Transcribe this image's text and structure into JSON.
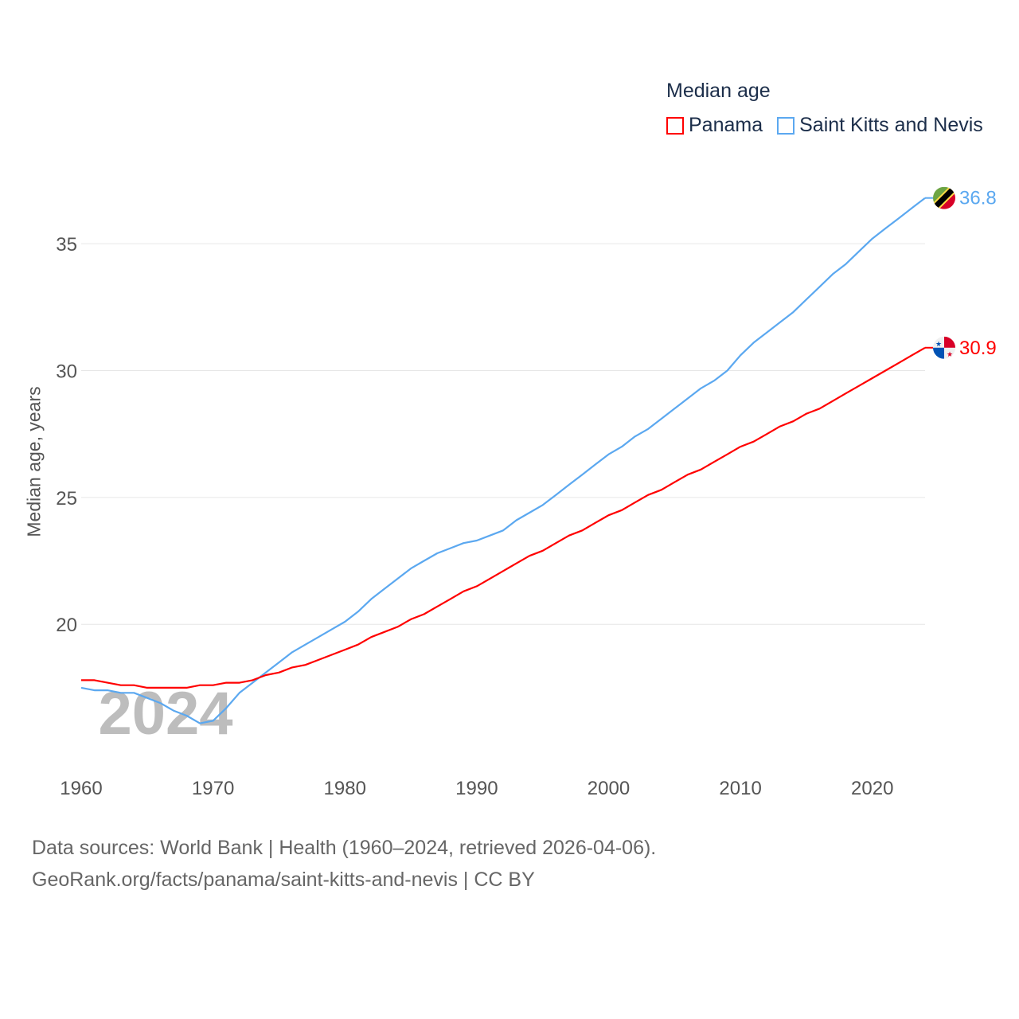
{
  "chart_data": {
    "type": "line",
    "title": "Median age",
    "xlabel": "",
    "ylabel": "Median age, years",
    "xlim": [
      1960,
      2024
    ],
    "ylim": [
      14.8,
      37.7
    ],
    "grid": true,
    "legend_position": "top-right",
    "x_ticks": [
      "1960",
      "1970",
      "1980",
      "1990",
      "2000",
      "2010",
      "2020"
    ],
    "y_ticks": [
      "20",
      "25",
      "30",
      "35"
    ],
    "watermark_year": "2024",
    "x": [
      1960,
      1961,
      1962,
      1963,
      1964,
      1965,
      1966,
      1967,
      1968,
      1969,
      1970,
      1971,
      1972,
      1973,
      1974,
      1975,
      1976,
      1977,
      1978,
      1979,
      1980,
      1981,
      1982,
      1983,
      1984,
      1985,
      1986,
      1987,
      1988,
      1989,
      1990,
      1991,
      1992,
      1993,
      1994,
      1995,
      1996,
      1997,
      1998,
      1999,
      2000,
      2001,
      2002,
      2003,
      2004,
      2005,
      2006,
      2007,
      2008,
      2009,
      2010,
      2011,
      2012,
      2013,
      2014,
      2015,
      2016,
      2017,
      2018,
      2019,
      2020,
      2021,
      2022,
      2023,
      2024
    ],
    "series": [
      {
        "name": "Panama",
        "color": "#ff0000",
        "end_label": "30.9",
        "values": [
          17.8,
          17.8,
          17.7,
          17.6,
          17.6,
          17.5,
          17.5,
          17.5,
          17.5,
          17.6,
          17.6,
          17.7,
          17.7,
          17.8,
          18.0,
          18.1,
          18.3,
          18.4,
          18.6,
          18.8,
          19.0,
          19.2,
          19.5,
          19.7,
          19.9,
          20.2,
          20.4,
          20.7,
          21.0,
          21.3,
          21.5,
          21.8,
          22.1,
          22.4,
          22.7,
          22.9,
          23.2,
          23.5,
          23.7,
          24.0,
          24.3,
          24.5,
          24.8,
          25.1,
          25.3,
          25.6,
          25.9,
          26.1,
          26.4,
          26.7,
          27.0,
          27.2,
          27.5,
          27.8,
          28.0,
          28.3,
          28.5,
          28.8,
          29.1,
          29.4,
          29.7,
          30.0,
          30.3,
          30.6,
          30.9
        ]
      },
      {
        "name": "Saint Kitts and Nevis",
        "color": "#5ba8f0",
        "end_label": "36.8",
        "values": [
          17.5,
          17.4,
          17.4,
          17.3,
          17.3,
          17.1,
          16.9,
          16.6,
          16.4,
          16.1,
          16.2,
          16.7,
          17.3,
          17.7,
          18.1,
          18.5,
          18.9,
          19.2,
          19.5,
          19.8,
          20.1,
          20.5,
          21.0,
          21.4,
          21.8,
          22.2,
          22.5,
          22.8,
          23.0,
          23.2,
          23.3,
          23.5,
          23.7,
          24.1,
          24.4,
          24.7,
          25.1,
          25.5,
          25.9,
          26.3,
          26.7,
          27.0,
          27.4,
          27.7,
          28.1,
          28.5,
          28.9,
          29.3,
          29.6,
          30.0,
          30.6,
          31.1,
          31.5,
          31.9,
          32.3,
          32.8,
          33.3,
          33.8,
          34.2,
          34.7,
          35.2,
          35.6,
          36.0,
          36.4,
          36.8
        ]
      }
    ]
  },
  "footer": {
    "line1": "Data sources: World Bank | Health (1960–2024, retrieved 2026-04-06).",
    "line2": "GeoRank.org/facts/panama/saint-kitts-and-nevis | CC BY"
  }
}
